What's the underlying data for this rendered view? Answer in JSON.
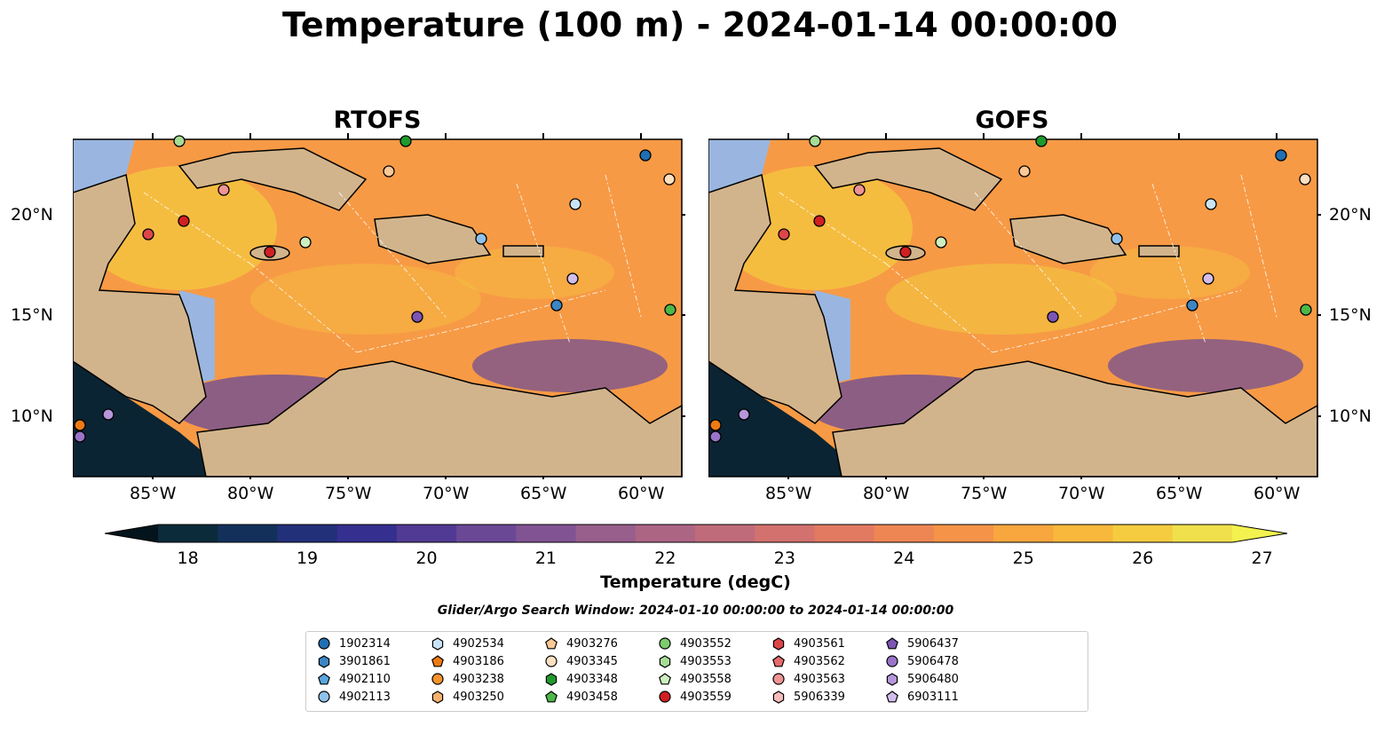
{
  "title": "Temperature (100 m) - 2024-01-14 00:00:00",
  "panels": [
    {
      "title": "RTOFS"
    },
    {
      "title": "GOFS"
    }
  ],
  "lon_ticks": [
    "85°W",
    "80°W",
    "75°W",
    "70°W",
    "65°W",
    "60°W"
  ],
  "lat_ticks": [
    "20°N",
    "15°N",
    "10°N"
  ],
  "colorbar": {
    "label": "Temperature (degC)",
    "ticks": [
      "18",
      "19",
      "20",
      "21",
      "22",
      "23",
      "24",
      "25",
      "26",
      "27"
    ],
    "colors": [
      "#0b2a3a",
      "#12305a",
      "#22307a",
      "#352f8f",
      "#513a94",
      "#6a4896",
      "#815392",
      "#985e8c",
      "#ad6584",
      "#c06b7a",
      "#d2716e",
      "#e27a62",
      "#ee8654",
      "#f59448",
      "#f8a63e",
      "#f8b83b",
      "#f5cc3f",
      "#f0e04c"
    ]
  },
  "search_window": "Glider/Argo Search Window: 2024-01-10 00:00:00 to 2024-01-14 00:00:00",
  "legend": [
    {
      "id": "1902314",
      "marker": "circle",
      "color": "#1f6fb4"
    },
    {
      "id": "3901861",
      "marker": "hexagon",
      "color": "#3b86c4"
    },
    {
      "id": "4902110",
      "marker": "pentagon",
      "color": "#5aa6dc"
    },
    {
      "id": "4902113",
      "marker": "circle",
      "color": "#8fc2ea"
    },
    {
      "id": "4902534",
      "marker": "hexagon",
      "color": "#c9e4f7"
    },
    {
      "id": "4903186",
      "marker": "pentagon",
      "color": "#f07a14"
    },
    {
      "id": "4903238",
      "marker": "circle",
      "color": "#f5922e"
    },
    {
      "id": "4903250",
      "marker": "hexagon",
      "color": "#f8b170"
    },
    {
      "id": "4903276",
      "marker": "pentagon",
      "color": "#fbc896"
    },
    {
      "id": "4903345",
      "marker": "circle",
      "color": "#fde0c0"
    },
    {
      "id": "4903348",
      "marker": "hexagon",
      "color": "#1f9a2c"
    },
    {
      "id": "4903458",
      "marker": "pentagon",
      "color": "#4cb848"
    },
    {
      "id": "4903552",
      "marker": "circle",
      "color": "#7ccb6c"
    },
    {
      "id": "4903553",
      "marker": "hexagon",
      "color": "#a6dc95"
    },
    {
      "id": "4903558",
      "marker": "pentagon",
      "color": "#cdeebf"
    },
    {
      "id": "4903559",
      "marker": "circle",
      "color": "#d11f22"
    },
    {
      "id": "4903561",
      "marker": "hexagon",
      "color": "#dc4648"
    },
    {
      "id": "4903562",
      "marker": "pentagon",
      "color": "#e66b6b"
    },
    {
      "id": "4903563",
      "marker": "circle",
      "color": "#ee9494"
    },
    {
      "id": "5906339",
      "marker": "hexagon",
      "color": "#f6bcbc"
    },
    {
      "id": "5906437",
      "marker": "pentagon",
      "color": "#7c55b5"
    },
    {
      "id": "5906478",
      "marker": "circle",
      "color": "#9a74c9"
    },
    {
      "id": "5906480",
      "marker": "hexagon",
      "color": "#b596da"
    },
    {
      "id": "6903111",
      "marker": "pentagon",
      "color": "#d3bdeb"
    }
  ],
  "map_colors": {
    "ocean_warm": "#f79a45",
    "ocean_hot": "#f3cc3e",
    "ocean_cool": "#6a4a98",
    "land": "#d2b48c",
    "shelf": "#9ab6e0",
    "deep_pacific": "#0b2433"
  }
}
